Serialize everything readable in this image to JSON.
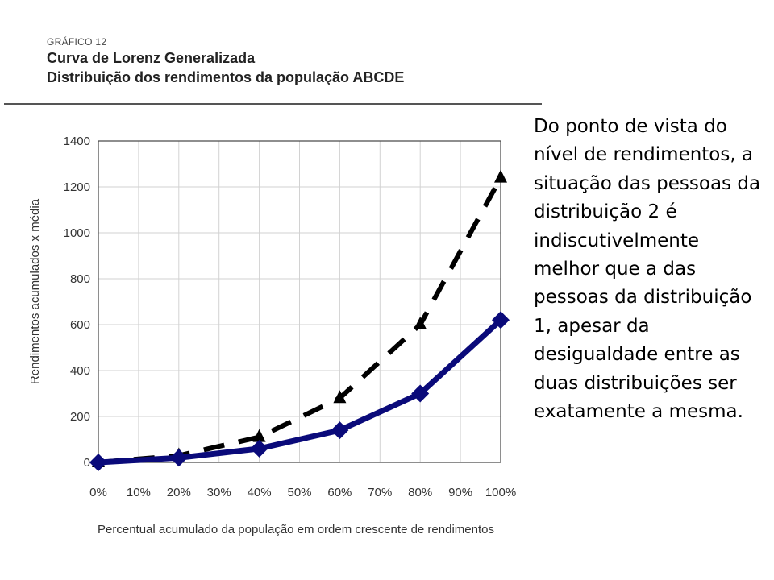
{
  "header": {
    "kicker": "GRÁFICO 12",
    "title": "Curva de Lorenz Generalizada",
    "subtitle": "Distribuição dos rendimentos da população ABCDE"
  },
  "side_text": "Do ponto de vista do nível de rendimentos, a situação das pessoas da distribuição 2 é indiscutivelmente melhor que a das pessoas da distribuição 1, apesar da desigualdade entre as duas distribuições ser exatamente a mesma.",
  "chart_data": {
    "type": "line",
    "xlabel": "Percentual acumulado da população em ordem crescente de rendimentos",
    "ylabel": "Rendimentos acumulados x média",
    "x_ticks": [
      "0%",
      "10%",
      "20%",
      "30%",
      "40%",
      "50%",
      "60%",
      "70%",
      "80%",
      "90%",
      "100%"
    ],
    "y_ticks": [
      "0",
      "200",
      "400",
      "600",
      "800",
      "1000",
      "1200",
      "1400"
    ],
    "xlim": [
      0,
      100
    ],
    "ylim": [
      0,
      1400
    ],
    "grid": true,
    "legend": "none",
    "series": [
      {
        "style": "solid",
        "marker": "diamond",
        "color": "#0a0a7a",
        "x": [
          0,
          20,
          40,
          60,
          80,
          100
        ],
        "values": [
          0,
          20,
          60,
          140,
          300,
          620
        ]
      },
      {
        "style": "dashed",
        "marker": "triangle",
        "color": "#000000",
        "x": [
          0,
          20,
          40,
          60,
          80,
          100
        ],
        "values": [
          0,
          30,
          110,
          280,
          600,
          1240
        ]
      }
    ]
  }
}
